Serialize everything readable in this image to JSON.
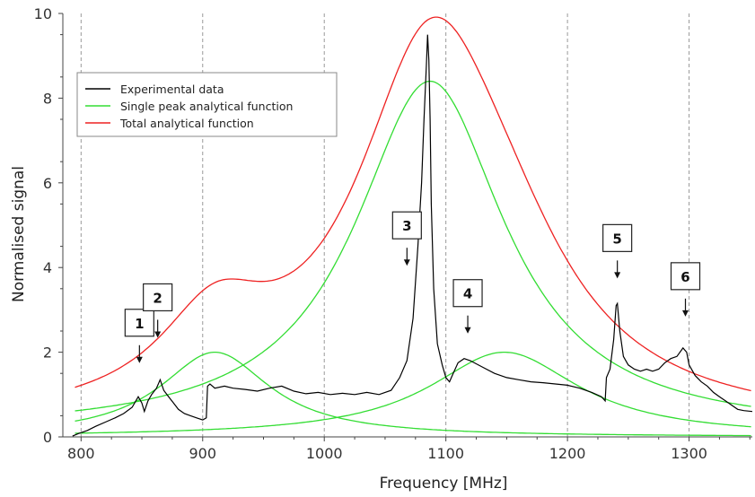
{
  "chart_data": {
    "type": "line",
    "xlabel": "Frequency [MHz]",
    "ylabel": "Normalised signal",
    "xlim": [
      785,
      1352
    ],
    "ylim": [
      0,
      10
    ],
    "x_ticks": [
      800,
      900,
      1000,
      1100,
      1200,
      1300
    ],
    "x_tick_labels": [
      "800",
      "900",
      "1000",
      "1100",
      "1200",
      "1300"
    ],
    "y_ticks": [
      0,
      2,
      4,
      6,
      8,
      10
    ],
    "y_tick_labels": [
      "0",
      "2",
      "4",
      "6",
      "8",
      "10"
    ],
    "grid": "vertical dashed",
    "legend_position": "upper-left",
    "legend": [
      {
        "label": "Experimental data",
        "color": "#000000"
      },
      {
        "label": "Single peak analytical function",
        "color": "#33dd33"
      },
      {
        "label": "Total analytical function",
        "color": "#ee2222"
      }
    ],
    "series": [
      {
        "name": "Experimental data",
        "color": "#000000",
        "points": [
          [
            793,
            0.02
          ],
          [
            798,
            0.08
          ],
          [
            805,
            0.15
          ],
          [
            812,
            0.25
          ],
          [
            820,
            0.35
          ],
          [
            828,
            0.45
          ],
          [
            835,
            0.55
          ],
          [
            842,
            0.7
          ],
          [
            847,
            0.95
          ],
          [
            850,
            0.8
          ],
          [
            852,
            0.6
          ],
          [
            855,
            0.85
          ],
          [
            858,
            1.0
          ],
          [
            862,
            1.15
          ],
          [
            865,
            1.35
          ],
          [
            868,
            1.1
          ],
          [
            872,
            0.95
          ],
          [
            876,
            0.8
          ],
          [
            880,
            0.65
          ],
          [
            885,
            0.55
          ],
          [
            890,
            0.5
          ],
          [
            895,
            0.45
          ],
          [
            900,
            0.4
          ],
          [
            903,
            0.45
          ],
          [
            904,
            1.2
          ],
          [
            906,
            1.25
          ],
          [
            910,
            1.15
          ],
          [
            918,
            1.2
          ],
          [
            925,
            1.15
          ],
          [
            935,
            1.12
          ],
          [
            945,
            1.08
          ],
          [
            955,
            1.15
          ],
          [
            965,
            1.2
          ],
          [
            975,
            1.08
          ],
          [
            985,
            1.02
          ],
          [
            995,
            1.05
          ],
          [
            1005,
            1.0
          ],
          [
            1015,
            1.03
          ],
          [
            1025,
            1.0
          ],
          [
            1035,
            1.05
          ],
          [
            1045,
            1.0
          ],
          [
            1055,
            1.1
          ],
          [
            1062,
            1.4
          ],
          [
            1068,
            1.8
          ],
          [
            1073,
            2.8
          ],
          [
            1077,
            4.5
          ],
          [
            1080,
            6.0
          ],
          [
            1082,
            7.5
          ],
          [
            1084,
            8.8
          ],
          [
            1085,
            9.5
          ],
          [
            1086,
            8.9
          ],
          [
            1087,
            7.5
          ],
          [
            1088,
            5.5
          ],
          [
            1090,
            3.5
          ],
          [
            1093,
            2.2
          ],
          [
            1097,
            1.7
          ],
          [
            1100,
            1.4
          ],
          [
            1103,
            1.3
          ],
          [
            1106,
            1.5
          ],
          [
            1110,
            1.75
          ],
          [
            1115,
            1.85
          ],
          [
            1120,
            1.8
          ],
          [
            1130,
            1.65
          ],
          [
            1140,
            1.5
          ],
          [
            1150,
            1.4
          ],
          [
            1160,
            1.35
          ],
          [
            1170,
            1.3
          ],
          [
            1180,
            1.28
          ],
          [
            1190,
            1.25
          ],
          [
            1200,
            1.22
          ],
          [
            1210,
            1.15
          ],
          [
            1220,
            1.05
          ],
          [
            1228,
            0.95
          ],
          [
            1231,
            0.85
          ],
          [
            1232,
            1.4
          ],
          [
            1235,
            1.6
          ],
          [
            1238,
            2.3
          ],
          [
            1240,
            3.1
          ],
          [
            1241,
            3.15
          ],
          [
            1243,
            2.5
          ],
          [
            1246,
            1.9
          ],
          [
            1250,
            1.7
          ],
          [
            1255,
            1.6
          ],
          [
            1260,
            1.55
          ],
          [
            1265,
            1.6
          ],
          [
            1270,
            1.55
          ],
          [
            1275,
            1.6
          ],
          [
            1280,
            1.75
          ],
          [
            1285,
            1.85
          ],
          [
            1290,
            1.9
          ],
          [
            1295,
            2.1
          ],
          [
            1298,
            2.0
          ],
          [
            1300,
            1.7
          ],
          [
            1305,
            1.45
          ],
          [
            1310,
            1.3
          ],
          [
            1315,
            1.2
          ],
          [
            1320,
            1.05
          ],
          [
            1325,
            0.95
          ],
          [
            1330,
            0.85
          ],
          [
            1335,
            0.75
          ],
          [
            1340,
            0.65
          ],
          [
            1345,
            0.62
          ],
          [
            1352,
            0.6
          ]
        ]
      },
      {
        "name": "Single peak analytical function",
        "color": "#33dd33",
        "components": [
          {
            "amplitude": 2.0,
            "center": 910,
            "hwhm": 55,
            "offset": 0.0
          },
          {
            "amplitude": 8.3,
            "center": 1087,
            "hwhm": 75,
            "offset": 0.1
          },
          {
            "amplitude": 2.0,
            "center": 1148,
            "hwhm": 75,
            "offset": 0.0
          },
          {
            "amplitude": 0.0,
            "center": 1087,
            "hwhm": 75,
            "offset": 0.1
          }
        ]
      },
      {
        "name": "Total analytical function",
        "color": "#ee2222",
        "formula": "sum of single peak analytical functions plus 0.2 baseline"
      }
    ],
    "annotations": [
      {
        "label": "1",
        "x": 848,
        "y": 1.7
      },
      {
        "label": "2",
        "x": 863,
        "y": 2.3
      },
      {
        "label": "3",
        "x": 1068,
        "y": 4.0
      },
      {
        "label": "4",
        "x": 1118,
        "y": 2.4
      },
      {
        "label": "5",
        "x": 1241,
        "y": 3.7
      },
      {
        "label": "6",
        "x": 1297,
        "y": 2.8
      }
    ]
  }
}
